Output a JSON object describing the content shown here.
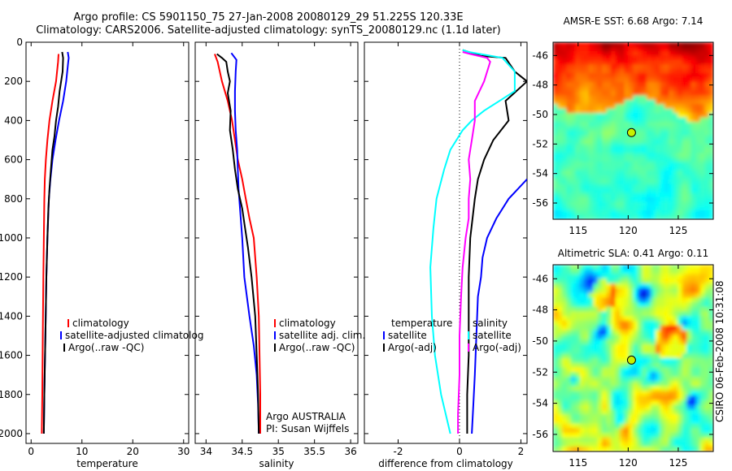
{
  "header": {
    "title_line1": "Argo profile: CS 5901150_75 27-Jan-2008 20080129_29 51.225S 120.33E",
    "title_line2": "Climatology: CARS2006. Satellite-adjusted climatology: synTS_20080129.nc (1.1d later)"
  },
  "footer": {
    "credit": "CSIRO 06-Feb-2008 10:31:08"
  },
  "colors": {
    "red": "#ff0000",
    "blue": "#0000ff",
    "black": "#000000",
    "cyan": "#00ffff",
    "magenta": "#ff00ff"
  },
  "chart_data": [
    {
      "type": "line",
      "xlabel": "temperature",
      "xlim": [
        -1,
        31
      ],
      "ylim": [
        2050,
        0
      ],
      "xticks": [
        "0",
        "10",
        "20",
        "30"
      ],
      "yticks": [
        "0",
        "200",
        "400",
        "600",
        "800",
        "1000",
        "1200",
        "1400",
        "1600",
        "1800",
        "2000"
      ],
      "legend": [
        "climatology",
        "satellite-adjusted climatolog",
        "Argo(..raw -QC)"
      ],
      "series": [
        {
          "name": "climatology",
          "color": "red",
          "points": [
            [
              5.4,
              60
            ],
            [
              5.3,
              100
            ],
            [
              4.9,
              200
            ],
            [
              4.2,
              300
            ],
            [
              3.6,
              400
            ],
            [
              3.2,
              500
            ],
            [
              2.9,
              600
            ],
            [
              2.7,
              700
            ],
            [
              2.6,
              800
            ],
            [
              2.5,
              1000
            ],
            [
              2.4,
              1200
            ],
            [
              2.3,
              1500
            ],
            [
              2.2,
              1800
            ],
            [
              2.1,
              2000
            ]
          ]
        },
        {
          "name": "satellite-adjusted climatolog",
          "color": "blue",
          "points": [
            [
              7.2,
              50
            ],
            [
              7.4,
              80
            ],
            [
              7.3,
              100
            ],
            [
              6.9,
              200
            ],
            [
              6.3,
              300
            ],
            [
              5.5,
              400
            ],
            [
              4.8,
              500
            ],
            [
              4.2,
              600
            ],
            [
              3.8,
              700
            ],
            [
              3.5,
              800
            ],
            [
              3.2,
              1000
            ],
            [
              3.0,
              1200
            ],
            [
              2.8,
              1500
            ],
            [
              2.6,
              1800
            ],
            [
              2.5,
              2000
            ]
          ]
        },
        {
          "name": "Argo(..raw -QC)",
          "color": "black",
          "points": [
            [
              6.1,
              50
            ],
            [
              6.3,
              80
            ],
            [
              6.2,
              150
            ],
            [
              5.6,
              250
            ],
            [
              5.3,
              330
            ],
            [
              4.9,
              400
            ],
            [
              4.6,
              480
            ],
            [
              4.2,
              550
            ],
            [
              3.9,
              650
            ],
            [
              3.6,
              750
            ],
            [
              3.4,
              850
            ],
            [
              3.2,
              1000
            ],
            [
              3.0,
              1200
            ],
            [
              2.8,
              1500
            ],
            [
              2.6,
              1800
            ],
            [
              2.5,
              2000
            ]
          ]
        }
      ]
    },
    {
      "type": "line",
      "xlabel": "salinity",
      "xlim": [
        33.85,
        36.1
      ],
      "ylim": [
        2050,
        0
      ],
      "xticks": [
        "34",
        "34.5",
        "35",
        "35.5",
        "36"
      ],
      "legend": [
        "climatology",
        "satellite adj. clim.",
        "Argo(..raw -QC)"
      ],
      "annotation": [
        "Argo AUSTRALIA",
        "PI: Susan Wijffels"
      ],
      "series": [
        {
          "name": "climatology",
          "color": "red",
          "points": [
            [
              34.12,
              60
            ],
            [
              34.16,
              100
            ],
            [
              34.22,
              200
            ],
            [
              34.3,
              300
            ],
            [
              34.36,
              400
            ],
            [
              34.4,
              500
            ],
            [
              34.44,
              600
            ],
            [
              34.5,
              700
            ],
            [
              34.55,
              800
            ],
            [
              34.6,
              900
            ],
            [
              34.66,
              1000
            ],
            [
              34.7,
              1200
            ],
            [
              34.73,
              1400
            ],
            [
              34.74,
              1600
            ],
            [
              34.75,
              1800
            ],
            [
              34.75,
              2000
            ]
          ]
        },
        {
          "name": "satellite adj. clim.",
          "color": "blue",
          "points": [
            [
              34.35,
              55
            ],
            [
              34.42,
              90
            ],
            [
              34.41,
              150
            ],
            [
              34.4,
              250
            ],
            [
              34.4,
              350
            ],
            [
              34.41,
              450
            ],
            [
              34.43,
              550
            ],
            [
              34.44,
              650
            ],
            [
              34.45,
              750
            ],
            [
              34.47,
              850
            ],
            [
              34.5,
              1000
            ],
            [
              34.53,
              1200
            ],
            [
              34.6,
              1400
            ],
            [
              34.66,
              1550
            ],
            [
              34.7,
              1700
            ],
            [
              34.72,
              1850
            ],
            [
              34.73,
              2000
            ]
          ]
        },
        {
          "name": "Argo(..raw -QC)",
          "color": "black",
          "points": [
            [
              34.15,
              60
            ],
            [
              34.22,
              80
            ],
            [
              34.28,
              100
            ],
            [
              34.3,
              150
            ],
            [
              34.33,
              200
            ],
            [
              34.3,
              260
            ],
            [
              34.34,
              350
            ],
            [
              34.33,
              450
            ],
            [
              34.37,
              550
            ],
            [
              34.4,
              650
            ],
            [
              34.44,
              750
            ],
            [
              34.5,
              850
            ],
            [
              34.54,
              950
            ],
            [
              34.58,
              1050
            ],
            [
              34.63,
              1200
            ],
            [
              34.68,
              1400
            ],
            [
              34.7,
              1600
            ],
            [
              34.72,
              1800
            ],
            [
              34.73,
              2000
            ]
          ]
        }
      ]
    },
    {
      "type": "line",
      "xlabel": "difference from climatology",
      "xlim": [
        -3.1,
        2.2
      ],
      "ylim": [
        2050,
        0
      ],
      "xticks": [
        "-2",
        "0",
        "2"
      ],
      "legend_left": {
        "title": "temperature",
        "items": [
          "satellite",
          "Argo(-adj)"
        ]
      },
      "legend_right": {
        "title": "salinity",
        "items": [
          "satellite",
          "Argo(-adj)"
        ]
      },
      "series": [
        {
          "name": "temperature satellite",
          "color": "blue",
          "points": [
            [
              2.2,
              700
            ],
            [
              1.6,
              800
            ],
            [
              1.2,
              900
            ],
            [
              0.9,
              1000
            ],
            [
              0.75,
              1100
            ],
            [
              0.7,
              1200
            ],
            [
              0.6,
              1300
            ],
            [
              0.55,
              1500
            ],
            [
              0.5,
              1700
            ],
            [
              0.45,
              1850
            ],
            [
              0.4,
              2000
            ]
          ]
        },
        {
          "name": "temperature Argo(-adj)",
          "color": "black",
          "points": [
            [
              0.1,
              40
            ],
            [
              0.7,
              70
            ],
            [
              1.5,
              80
            ],
            [
              1.8,
              150
            ],
            [
              2.2,
              200
            ],
            [
              1.5,
              300
            ],
            [
              1.6,
              400
            ],
            [
              1.1,
              500
            ],
            [
              0.8,
              600
            ],
            [
              0.6,
              700
            ],
            [
              0.5,
              800
            ],
            [
              0.35,
              1000
            ],
            [
              0.3,
              1200
            ],
            [
              0.3,
              1400
            ],
            [
              0.3,
              1600
            ],
            [
              0.25,
              1800
            ],
            [
              0.25,
              2000
            ]
          ]
        },
        {
          "name": "salinity satellite",
          "color": "cyan",
          "points": [
            [
              0.1,
              40
            ],
            [
              0.3,
              50
            ],
            [
              1.4,
              80
            ],
            [
              1.8,
              150
            ],
            [
              1.8,
              250
            ],
            [
              1.3,
              300
            ],
            [
              0.8,
              350
            ],
            [
              0.4,
              400
            ],
            [
              0.1,
              450
            ],
            [
              -0.3,
              550
            ],
            [
              -0.5,
              650
            ],
            [
              -0.75,
              800
            ],
            [
              -0.85,
              950
            ],
            [
              -0.95,
              1150
            ],
            [
              -0.9,
              1400
            ],
            [
              -0.8,
              1600
            ],
            [
              -0.6,
              1800
            ],
            [
              -0.3,
              2000
            ]
          ]
        },
        {
          "name": "salinity Argo(-adj)",
          "color": "magenta",
          "points": [
            [
              0.1,
              50
            ],
            [
              0.35,
              60
            ],
            [
              0.9,
              80
            ],
            [
              1.0,
              100
            ],
            [
              0.8,
              200
            ],
            [
              0.5,
              300
            ],
            [
              0.5,
              400
            ],
            [
              0.4,
              500
            ],
            [
              0.3,
              600
            ],
            [
              0.35,
              700
            ],
            [
              0.3,
              800
            ],
            [
              0.3,
              900
            ],
            [
              0.2,
              1000
            ],
            [
              0.1,
              1150
            ],
            [
              0.05,
              1300
            ],
            [
              0.0,
              1500
            ],
            [
              0.0,
              1700
            ],
            [
              -0.05,
              1900
            ],
            [
              -0.05,
              2000
            ]
          ]
        }
      ]
    },
    {
      "type": "heatmap",
      "title": "AMSR-E SST: 6.68 Argo: 7.14",
      "xticks": [
        "115",
        "120",
        "125"
      ],
      "yticks": [
        "-46",
        "-48",
        "-50",
        "-52",
        "-54",
        "-56"
      ],
      "xlim": [
        112.5,
        128.5
      ],
      "ylim": [
        -57.1,
        -45.1
      ],
      "marker": {
        "lon": 120.33,
        "lat": -51.225
      }
    },
    {
      "type": "heatmap",
      "title": "Altimetric SLA: 0.41 Argo: 0.11",
      "xticks": [
        "115",
        "120",
        "125"
      ],
      "yticks": [
        "-46",
        "-48",
        "-50",
        "-52",
        "-54",
        "-56"
      ],
      "xlim": [
        112.5,
        128.5
      ],
      "ylim": [
        -57.1,
        -45.1
      ],
      "marker": {
        "lon": 120.33,
        "lat": -51.225
      }
    }
  ]
}
